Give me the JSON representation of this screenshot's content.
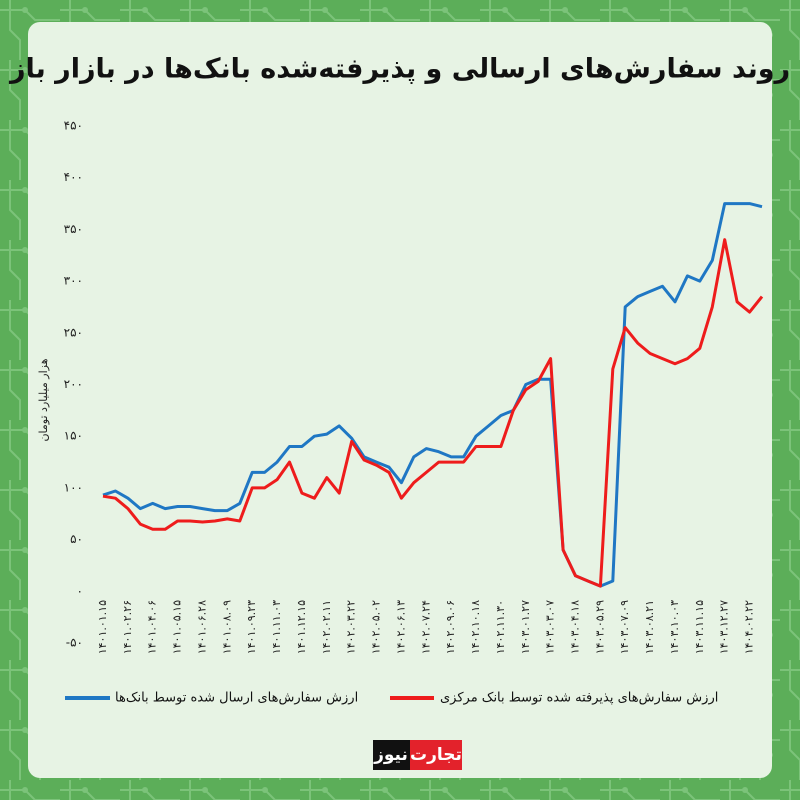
{
  "chart_data": {
    "type": "line",
    "title": "روند سفارش‌های ارسالی و پذیرفته‌شده بانک‌ها در بازار باز",
    "y_label": "هزار میلیارد تومان",
    "categories": [
      "۱۴۰۱.۰۱.۱۵",
      null,
      "۱۴۰۱.۰۲.۲۶",
      null,
      "۱۴۰۱.۰۴.۰۶",
      null,
      "۱۴۰۱.۰۵.۱۵",
      null,
      "۱۴۰۱.۰۶.۲۸",
      null,
      "۱۴۰۱.۰۸.۰۹",
      null,
      "۱۴۰۱.۰۹.۲۳",
      null,
      "۱۴۰۱.۱۱.۰۳",
      null,
      "۱۴۰۱.۱۲.۱۵",
      null,
      "۱۴۰۲.۰۲.۱۱",
      null,
      "۱۴۰۲.۰۳.۲۲",
      null,
      "۱۴۰۲.۰۵.۰۲",
      null,
      "۱۴۰۲.۰۶.۱۳",
      null,
      "۱۴۰۲.۰۷.۲۴",
      null,
      "۱۴۰۲.۰۹.۰۶",
      null,
      "۱۴۰۲.۱۰.۱۸",
      null,
      "۱۴۰۲.۱۱.۳۰",
      null,
      "۱۴۰۳.۰۱.۲۷",
      null,
      "۱۴۰۳.۰۳.۰۷",
      null,
      "۱۴۰۳.۰۴.۱۸",
      null,
      "۱۴۰۳.۰۵.۲۹",
      null,
      "۱۴۰۳.۰۷.۰۹",
      null,
      "۱۴۰۳.۰۸.۲۱",
      null,
      "۱۴۰۳.۱۰.۰۳",
      null,
      "۱۴۰۳.۱۱.۱۵",
      null,
      "۱۴۰۳.۱۲.۲۷",
      null,
      "۱۴۰۴.۰۲.۲۲",
      null
    ],
    "series": [
      {
        "name": "ارزش سفارش‌های ارسال شده توسط بانک‌ها",
        "color": "#1f77c4",
        "values": [
          93,
          97,
          90,
          80,
          85,
          80,
          82,
          82,
          80,
          78,
          78,
          85,
          115,
          115,
          125,
          140,
          140,
          150,
          152,
          160,
          148,
          130,
          125,
          120,
          105,
          130,
          138,
          135,
          130,
          130,
          150,
          160,
          170,
          175,
          200,
          205,
          205,
          40,
          15,
          10,
          5,
          10,
          275,
          285,
          290,
          295,
          280,
          305,
          300,
          320,
          375,
          375,
          375,
          372
        ]
      },
      {
        "name": "ارزش سفارش‌های پذیرفته شده توسط بانک مرکزی",
        "color": "#ee1c1c",
        "values": [
          92,
          90,
          80,
          65,
          60,
          60,
          68,
          68,
          67,
          68,
          70,
          68,
          100,
          100,
          108,
          125,
          95,
          90,
          110,
          95,
          145,
          127,
          122,
          115,
          90,
          105,
          115,
          125,
          125,
          125,
          140,
          140,
          140,
          175,
          195,
          203,
          225,
          40,
          15,
          10,
          5,
          215,
          255,
          240,
          230,
          225,
          220,
          225,
          235,
          275,
          340,
          280,
          270,
          285
        ]
      }
    ],
    "ylim": [
      -50,
      450
    ],
    "yticks": [
      {
        "value": -50,
        "label": "-۵۰"
      },
      {
        "value": 0,
        "label": "۰"
      },
      {
        "value": 50,
        "label": "۵۰"
      },
      {
        "value": 100,
        "label": "۱۰۰"
      },
      {
        "value": 150,
        "label": "۱۵۰"
      },
      {
        "value": 200,
        "label": "۲۰۰"
      },
      {
        "value": 250,
        "label": "۲۵۰"
      },
      {
        "value": 300,
        "label": "۳۰۰"
      },
      {
        "value": 350,
        "label": "۳۵۰"
      },
      {
        "value": 400,
        "label": "۴۰۰"
      },
      {
        "value": 450,
        "label": "۴۵۰"
      }
    ],
    "grid": false,
    "legend": "bottom"
  },
  "brand": {
    "part1": "تجارت",
    "part2": "نیوز"
  }
}
